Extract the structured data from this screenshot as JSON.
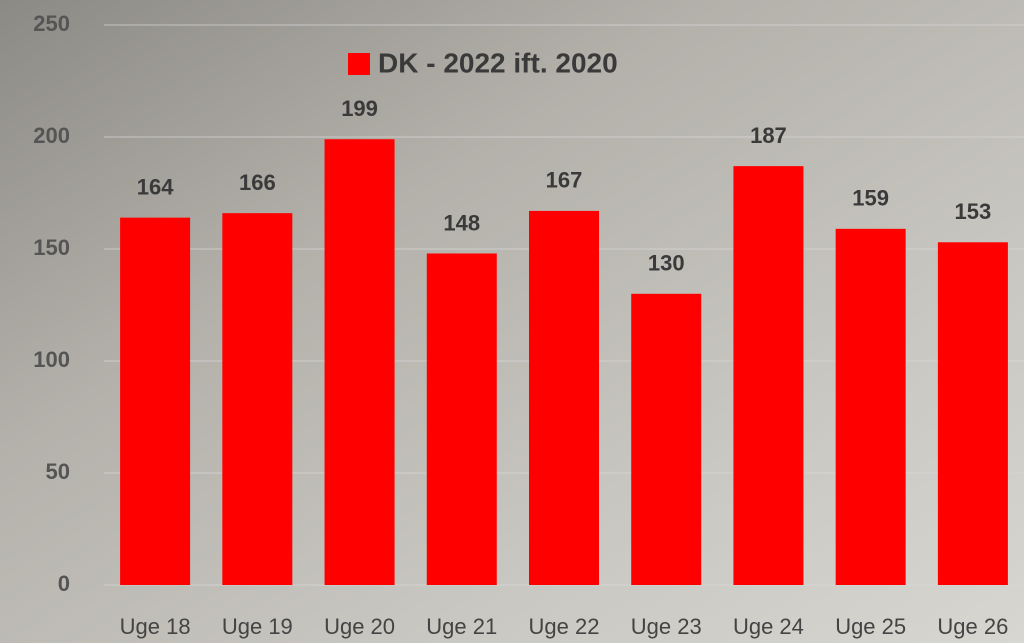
{
  "chart_data": {
    "type": "bar",
    "categories": [
      "Uge 18",
      "Uge 19",
      "Uge 20",
      "Uge 21",
      "Uge 22",
      "Uge 23",
      "Uge 24",
      "Uge 25",
      "Uge 26"
    ],
    "series": [
      {
        "name": "DK - 2022 ift. 2020",
        "color": "#ff0000",
        "values": [
          164,
          166,
          199,
          148,
          167,
          130,
          187,
          159,
          153
        ]
      }
    ],
    "ylim": [
      0,
      250
    ],
    "yticks": [
      0,
      50,
      100,
      150,
      200,
      250
    ],
    "grid": true,
    "legend": "top"
  }
}
